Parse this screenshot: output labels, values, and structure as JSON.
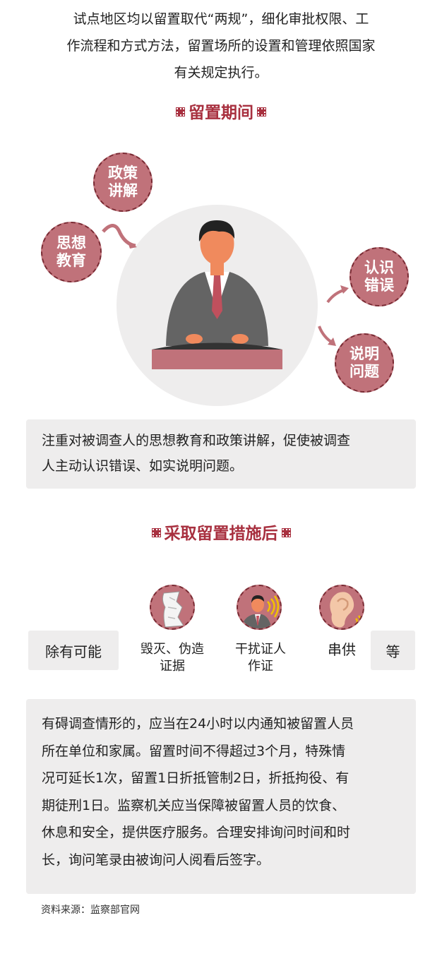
{
  "intro": {
    "line1": "试点地区均以留置取代“两规”，细化审批权限、工",
    "line2": "作流程和方式方法，留置场所的设置和管理依照国家",
    "line3": "有关规定执行。"
  },
  "section1": {
    "title": "留置期间",
    "bubbles": {
      "policy": [
        "政策",
        "讲解"
      ],
      "thought": [
        "思想",
        "教育"
      ],
      "admit": [
        "认识",
        "错误"
      ],
      "explain": [
        "说明",
        "问题"
      ]
    },
    "desc_line1": "注重对被调查人的思想教育和政策讲解，促使被调查",
    "desc_line2": "人主动认识错误、如实说明问题。"
  },
  "section2": {
    "title": "采取留置措施后",
    "except_label": "除有可能",
    "items": [
      {
        "label_line1": "毁灭、伪造",
        "label_line2": "证据",
        "icon": "torn-paper-icon"
      },
      {
        "label_line1": "干扰证人",
        "label_line2": "作证",
        "icon": "person-interference-icon"
      },
      {
        "label_line1": "串供",
        "label_line2": "",
        "icon": "ear-icon"
      }
    ],
    "etc_label": "等",
    "desc_lines": [
      "有碍调查情形的，应当在24小时以内通知被留置人员",
      "所在单位和家属。留置时间不得超过3个月，特殊情",
      "况可延长1次，留置1日折抵管制2日，折抵拘役、有",
      "期徒刑1日。监察机关应当保障被留置人员的饮食、",
      "休息和安全，提供医疗服务。合理安排询问时间和时",
      "长，询问笔录由被询问人阅看后签字。"
    ]
  },
  "source": "资料来源：监察部官网",
  "colors": {
    "accent": "#a8303f",
    "bubble": "#c0727a",
    "box": "#eeeded",
    "suit": "#646464",
    "skin": "#f08a5d"
  }
}
